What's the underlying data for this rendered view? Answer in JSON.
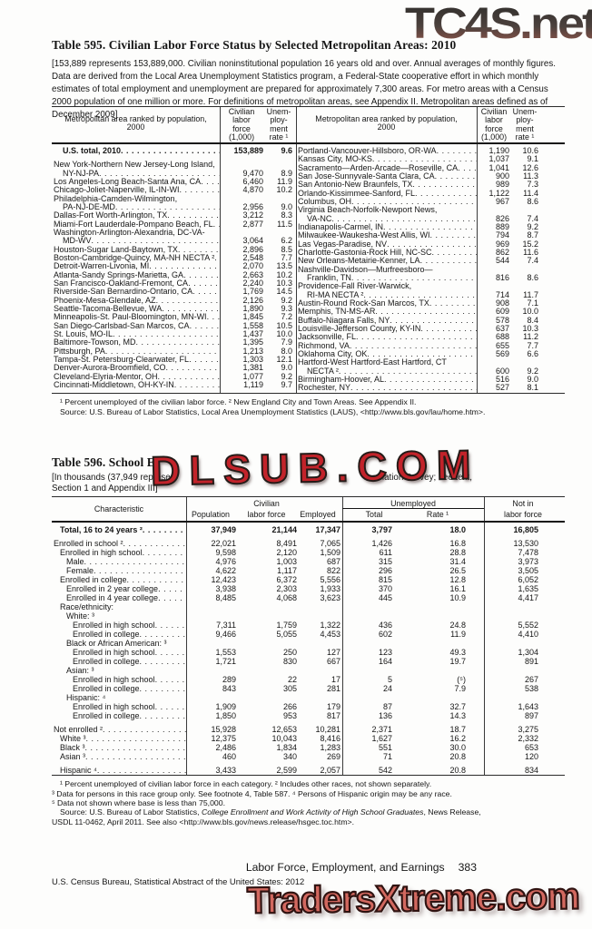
{
  "watermarks": {
    "top": "TC4S.net",
    "middle": "DLSUB.COM",
    "bottom": "TradersXtreme.com"
  },
  "footer": {
    "running_head": "Labor Force, Employment, and Earnings",
    "page_number": "383",
    "imprint": "U.S. Census Bureau, Statistical Abstract of the United States: 2012"
  },
  "table595": {
    "title": "Table 595. Civilian Labor Force Status by Selected Metropolitan Areas: 2010",
    "note_lines": [
      "[153,889 represents 153,889,000. Civilian noninstitutional population 16 years old and over. Annual averages of monthly figures.",
      "Data are derived from the Local Area Unemployment Statistics program, a Federal-State cooperative effort in which monthly",
      "estimates of total employment and unemployment are prepared for approximately 7,300 areas. For metro areas with a Census",
      "2000 population of one million or more. For definitions of metropolitan areas, see Appendix II. Metropolitan areas defined as of",
      "December 2009]"
    ],
    "header": {
      "stub_line1": "Metropolitan area ranked by population,",
      "stub_line2": "2000",
      "col1_lines": [
        "Civilian",
        "labor",
        "force",
        "(1,000)"
      ],
      "col2_lines": [
        "Unem-",
        "ploy-",
        "ment",
        "rate ¹"
      ]
    },
    "left_rows": [
      {
        "t": "U.S. total, 2010",
        "i": 1,
        "b": 1,
        "ga": 1,
        "f": "153,889",
        "r": "9.6"
      },
      {
        "t": "New York-Northern New Jersey-Long Island,"
      },
      {
        "t": "NY-NJ-PA",
        "i": 1,
        "f": "9,470",
        "r": "8.9"
      },
      {
        "t": "Los Angeles-Long Beach-Santa Ana, CA",
        "f": "6,460",
        "r": "11.9"
      },
      {
        "t": "Chicago-Joliet-Naperville, IL-IN-WI",
        "f": "4,870",
        "r": "10.2"
      },
      {
        "t": "Philadelphia-Camden-Wilmington,"
      },
      {
        "t": "PA-NJ-DE-MD",
        "i": 1,
        "f": "2,956",
        "r": "9.0"
      },
      {
        "t": "Dallas-Fort Worth-Arlington, TX",
        "f": "3,212",
        "r": "8.3"
      },
      {
        "t": "Miami-Fort Lauderdale-Pompano Beach, FL",
        "f": "2,877",
        "r": "11.5"
      },
      {
        "t": "Washington-Arlington-Alexandria, DC-VA-"
      },
      {
        "t": "MD-WV",
        "i": 1,
        "f": "3,064",
        "r": "6.2"
      },
      {
        "t": "Houston-Sugar Land-Baytown, TX",
        "f": "2,896",
        "r": "8.5"
      },
      {
        "t": "Boston-Cambridge-Quincy, MA-NH NECTA ²",
        "f": "2,548",
        "r": "7.7"
      },
      {
        "t": "Detroit-Warren-Livonia, MI",
        "f": "2,070",
        "r": "13.5"
      },
      {
        "t": "Atlanta-Sandy Springs-Marietta, GA",
        "f": "2,663",
        "r": "10.2"
      },
      {
        "t": "San Francisco-Oakland-Fremont, CA",
        "f": "2,240",
        "r": "10.3"
      },
      {
        "t": "Riverside-San Bernardino-Ontario, CA",
        "f": "1,769",
        "r": "14.5"
      },
      {
        "t": "Phoenix-Mesa-Glendale, AZ",
        "f": "2,126",
        "r": "9.2"
      },
      {
        "t": "Seattle-Tacoma-Bellevue, WA",
        "f": "1,890",
        "r": "9.3"
      },
      {
        "t": "Minneapolis-St. Paul-Bloomington, MN-WI",
        "f": "1,845",
        "r": "7.2"
      },
      {
        "t": "San Diego-Carlsbad-San Marcos, CA",
        "f": "1,558",
        "r": "10.5"
      },
      {
        "t": "St. Louis, MO-IL",
        "f": "1,437",
        "r": "10.0"
      },
      {
        "t": "Baltimore-Towson, MD",
        "f": "1,395",
        "r": "7.9"
      },
      {
        "t": "Pittsburgh, PA",
        "f": "1,213",
        "r": "8.0"
      },
      {
        "t": "Tampa-St. Petersburg-Clearwater, FL",
        "f": "1,303",
        "r": "12.1"
      },
      {
        "t": "Denver-Aurora-Broomfield, CO",
        "f": "1,381",
        "r": "9.0"
      },
      {
        "t": "Cleveland-Elyria-Mentor, OH",
        "f": "1,077",
        "r": "9.2"
      },
      {
        "t": "Cincinnati-Middletown, OH-KY-IN",
        "f": "1,119",
        "r": "9.7"
      }
    ],
    "right_rows": [
      {
        "t": "Portland-Vancouver-Hillsboro, OR-WA",
        "f": "1,190",
        "r": "10.6"
      },
      {
        "t": "Kansas City, MO-KS",
        "f": "1,037",
        "r": "9.1"
      },
      {
        "t": "Sacramento—Arden-Arcade—Roseville, CA",
        "f": "1,041",
        "r": "12.6"
      },
      {
        "t": "San Jose-Sunnyvale-Santa Clara, CA",
        "f": "900",
        "r": "11.3"
      },
      {
        "t": "San Antonio-New Braunfels, TX",
        "f": "989",
        "r": "7.3"
      },
      {
        "t": "Orlando-Kissimmee-Sanford, FL",
        "f": "1,122",
        "r": "11.4"
      },
      {
        "t": "Columbus, OH",
        "f": "967",
        "r": "8.6"
      },
      {
        "t": "Virginia Beach-Norfolk-Newport News,"
      },
      {
        "t": "VA-NC",
        "i": 1,
        "f": "826",
        "r": "7.4"
      },
      {
        "t": "Indianapolis-Carmel, IN",
        "f": "889",
        "r": "9.2"
      },
      {
        "t": "Milwaukee-Waukesha-West Allis, WI",
        "f": "794",
        "r": "8.7"
      },
      {
        "t": "Las Vegas-Paradise, NV",
        "f": "969",
        "r": "15.2"
      },
      {
        "t": "Charlotte-Gastonia-Rock Hill, NC-SC",
        "f": "862",
        "r": "11.6"
      },
      {
        "t": "New Orleans-Metairie-Kenner, LA",
        "f": "544",
        "r": "7.4"
      },
      {
        "t": "Nashville-Davidson—Murfreesboro—"
      },
      {
        "t": "Franklin, TN",
        "i": 1,
        "f": "816",
        "r": "8.6"
      },
      {
        "t": "Providence-Fall River-Warwick,"
      },
      {
        "t": "RI-MA NECTA ²",
        "i": 1,
        "f": "714",
        "r": "11.7"
      },
      {
        "t": "Austin-Round Rock-San Marcos, TX",
        "f": "908",
        "r": "7.1"
      },
      {
        "t": "Memphis, TN-MS-AR",
        "f": "609",
        "r": "10.0"
      },
      {
        "t": "Buffalo-Niagara Falls, NY",
        "f": "578",
        "r": "8.4"
      },
      {
        "t": "Louisville-Jefferson County, KY-IN",
        "f": "637",
        "r": "10.3"
      },
      {
        "t": "Jacksonville, FL",
        "f": "688",
        "r": "11.2"
      },
      {
        "t": "Richmond, VA",
        "f": "655",
        "r": "7.7"
      },
      {
        "t": "Oklahoma City, OK",
        "f": "569",
        "r": "6.6"
      },
      {
        "t": "Hartford-West Hartford-East Hartford, CT"
      },
      {
        "t": "NECTA ²",
        "i": 1,
        "f": "600",
        "r": "9.2"
      },
      {
        "t": "Birmingham-Hoover, AL",
        "f": "516",
        "r": "9.0"
      },
      {
        "t": "Rochester, NY",
        "f": "527",
        "r": "8.1"
      }
    ],
    "footnote_lines": [
      "¹ Percent unemployed of the civilian labor force. ² New England City and Town Areas. See Appendix II.",
      "Source: U.S. Bureau of Labor Statistics, Local Area Unemployment Statistics (LAUS), <http://www.bls.gov/lau/home.htm>."
    ]
  },
  "table596": {
    "title_visible": "Table 596. School E",
    "note_left": "[In thousands (37,949 represen",
    "note_right": "pulation Survey; see text,",
    "note_line2": "Section 1 and Appendix III]",
    "header": {
      "stub": "Characteristic",
      "civilian": "Civilian",
      "population": "Population",
      "labor_force": "labor force",
      "employed": "Employed",
      "unemployed": "Unemployed",
      "total": "Total",
      "rate": "Rate ¹",
      "not_in": "Not in",
      "labor_force2": "labor force"
    },
    "rows": [
      {
        "t": "Total, 16 to 24 years ²",
        "i": 1,
        "b": 1,
        "ga": 1,
        "v": [
          "37,949",
          "21,144",
          "17,347",
          "3,797",
          "18.0",
          "16,805"
        ]
      },
      {
        "t": "Enrolled in school ²",
        "i": 0,
        "v": [
          "22,021",
          "8,491",
          "7,065",
          "1,426",
          "16.8",
          "13,530"
        ]
      },
      {
        "t": "Enrolled in high school",
        "i": 1,
        "v": [
          "9,598",
          "2,120",
          "1,509",
          "611",
          "28.8",
          "7,478"
        ]
      },
      {
        "t": "Male",
        "i": 2,
        "v": [
          "4,976",
          "1,003",
          "687",
          "315",
          "31.4",
          "3,973"
        ]
      },
      {
        "t": "Female",
        "i": 2,
        "v": [
          "4,622",
          "1,117",
          "822",
          "296",
          "26.5",
          "3,505"
        ]
      },
      {
        "t": "Enrolled in college",
        "i": 1,
        "v": [
          "12,423",
          "6,372",
          "5,556",
          "815",
          "12.8",
          "6,052"
        ]
      },
      {
        "t": "Enrolled in 2 year college",
        "i": 2,
        "v": [
          "3,938",
          "2,303",
          "1,933",
          "370",
          "16.1",
          "1,635"
        ]
      },
      {
        "t": "Enrolled in 4 year college",
        "i": 2,
        "v": [
          "8,485",
          "4,068",
          "3,623",
          "445",
          "10.9",
          "4,417"
        ]
      },
      {
        "t": "Race/ethnicity:",
        "i": 1
      },
      {
        "t": "White: ³",
        "i": 2
      },
      {
        "t": "Enrolled in high school",
        "i": 3,
        "v": [
          "7,311",
          "1,759",
          "1,322",
          "436",
          "24.8",
          "5,552"
        ]
      },
      {
        "t": "Enrolled in college",
        "i": 3,
        "v": [
          "9,466",
          "5,055",
          "4,453",
          "602",
          "11.9",
          "4,410"
        ]
      },
      {
        "t": "Black or African American: ³",
        "i": 2
      },
      {
        "t": "Enrolled in high school",
        "i": 3,
        "v": [
          "1,553",
          "250",
          "127",
          "123",
          "49.3",
          "1,304"
        ]
      },
      {
        "t": "Enrolled in college",
        "i": 3,
        "v": [
          "1,721",
          "830",
          "667",
          "164",
          "19.7",
          "891"
        ]
      },
      {
        "t": "Asian: ³",
        "i": 2
      },
      {
        "t": "Enrolled in high school",
        "i": 3,
        "v": [
          "289",
          "22",
          "17",
          "5",
          "(⁵)",
          "267"
        ]
      },
      {
        "t": "Enrolled in college",
        "i": 3,
        "v": [
          "843",
          "305",
          "281",
          "24",
          "7.9",
          "538"
        ]
      },
      {
        "t": "Hispanic: ⁴",
        "i": 2
      },
      {
        "t": "Enrolled in high school",
        "i": 3,
        "v": [
          "1,909",
          "266",
          "179",
          "87",
          "32.7",
          "1,643"
        ]
      },
      {
        "t": "Enrolled in college",
        "i": 3,
        "ga": 1,
        "v": [
          "1,850",
          "953",
          "817",
          "136",
          "14.3",
          "897"
        ]
      },
      {
        "t": "Not enrolled ²",
        "i": 0,
        "v": [
          "15,928",
          "12,653",
          "10,281",
          "2,371",
          "18.7",
          "3,275"
        ]
      },
      {
        "t": "White ³",
        "i": 1,
        "v": [
          "12,375",
          "10,043",
          "8,416",
          "1,627",
          "16.2",
          "2,332"
        ]
      },
      {
        "t": "Black ³",
        "i": 1,
        "v": [
          "2,486",
          "1,834",
          "1,283",
          "551",
          "30.0",
          "653"
        ]
      },
      {
        "t": "Asian ³",
        "i": 1,
        "ga": 1,
        "v": [
          "460",
          "340",
          "269",
          "71",
          "20.8",
          "120"
        ]
      },
      {
        "t": "Hispanic ⁴",
        "i": 1,
        "v": [
          "3,433",
          "2,599",
          "2,057",
          "542",
          "20.8",
          "834"
        ]
      }
    ],
    "footnote_lines": [
      "¹ Percent unemployed of civilian labor force in each category. ² Includes other races, not shown separately.",
      "³ Data for persons in this race group only. See footnote 4, Table 587. ⁴ Persons of Hispanic origin may be any race.",
      "⁵ Data not shown where base is less than 75,000."
    ],
    "source": {
      "pre": "Source: U.S. Bureau of Labor Statistics, ",
      "italic": "College Enrollment and Work Activity of High School Graduates",
      "post": ", News Release,"
    },
    "source_line2": "USDL 11-0462, April 2011. See also <http://www.bls.gov/news.release/hsgec.toc.htm>."
  }
}
